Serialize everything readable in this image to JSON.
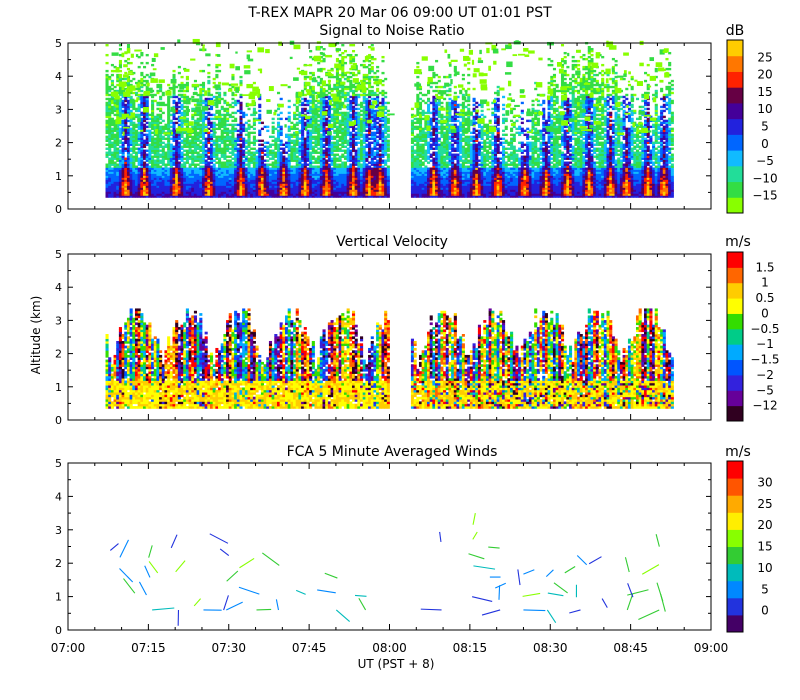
{
  "header": {
    "title": "T-REX   MAPR 20 Mar 06   09:00 UT   01:01   PST"
  },
  "y_axis_label": "Altitude (km)",
  "x_axis": {
    "label": "UT  (PST + 8)",
    "ticks": [
      "07:00",
      "07:15",
      "07:30",
      "07:45",
      "08:00",
      "08:15",
      "08:30",
      "08:45",
      "09:00"
    ],
    "range_minutes": [
      0,
      120
    ]
  },
  "colors": {
    "snr": [
      "#88ff00",
      "#33dd44",
      "#22dd99",
      "#11bbff",
      "#0066ff",
      "#2222dd",
      "#440099",
      "#660044",
      "#ff2200",
      "#ff7700",
      "#ffcc00"
    ],
    "vv": [
      "#300020",
      "#660099",
      "#3322dd",
      "#0055ff",
      "#00aaff",
      "#00cc88",
      "#33dd00",
      "#ffff00",
      "#ffcc00",
      "#ff6600",
      "#ff0000"
    ],
    "wind": [
      "#440066",
      "#2233dd",
      "#0088ff",
      "#00bbbb",
      "#33cc33",
      "#88ff00",
      "#ffee00",
      "#ffaa00",
      "#ff5500",
      "#ff0000"
    ]
  },
  "chart_data": [
    {
      "id": "snr",
      "type": "heatmap",
      "title": "Signal to Noise Ratio",
      "units": "dB",
      "y_ticks": [
        "0",
        "1",
        "2",
        "3",
        "4",
        "5"
      ],
      "ylim": [
        0,
        5
      ],
      "colorbar_labels": [
        "25",
        "20",
        "15",
        "10",
        "5",
        "0",
        "−5",
        "−10",
        "−15"
      ],
      "data_gaps_minutes": [
        [
          0,
          7
        ],
        [
          113,
          120
        ]
      ],
      "no_data_minutes": [
        [
          60,
          64
        ]
      ]
    },
    {
      "id": "vv",
      "type": "heatmap",
      "title": "Vertical Velocity",
      "units": "m/s",
      "y_ticks": [
        "0",
        "1",
        "2",
        "3",
        "4",
        "5"
      ],
      "ylim": [
        0,
        5
      ],
      "colorbar_labels": [
        "1.5",
        "1",
        "0.5",
        "0",
        "−0.5",
        "−1",
        "−1.5",
        "−2",
        "−5",
        "−12"
      ],
      "data_gaps_minutes": [
        [
          0,
          7
        ],
        [
          113,
          120
        ]
      ],
      "no_data_minutes": [
        [
          60,
          64
        ]
      ]
    },
    {
      "id": "winds",
      "type": "scatter",
      "title": "FCA 5 Minute Averaged Winds",
      "units": "m/s",
      "y_ticks": [
        "0",
        "1",
        "2",
        "3",
        "4",
        "5"
      ],
      "ylim": [
        0,
        5
      ],
      "colorbar_labels": [
        "30",
        "25",
        "20",
        "15",
        "10",
        "5",
        "0"
      ]
    }
  ]
}
